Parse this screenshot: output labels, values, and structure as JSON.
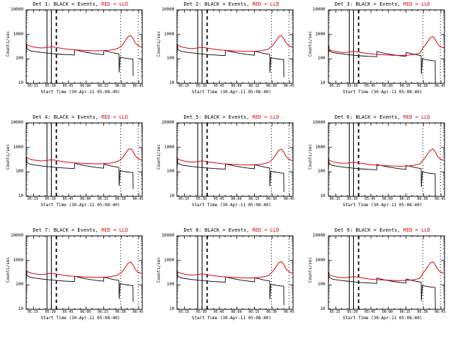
{
  "app": {
    "background": "#ffffff"
  },
  "colors": {
    "events": "#000000",
    "lld": "#dd0000",
    "frame": "#000000"
  },
  "chart_data": {
    "type": "line",
    "ylabel": "Counts/sec",
    "xlabel": "Start Time (30-Apr-11 05:08:40)",
    "ylog": true,
    "ylim": [
      10,
      10000
    ],
    "yticks": [
      10,
      100,
      1000,
      10000
    ],
    "xlim_minutes": [
      8.67,
      108
    ],
    "xticks": [
      {
        "m": 15,
        "label": "05:15"
      },
      {
        "m": 30,
        "label": "05:30"
      },
      {
        "m": 45,
        "label": "05:45"
      },
      {
        "m": 60,
        "label": "06:00"
      },
      {
        "m": 75,
        "label": "06:15"
      },
      {
        "m": 90,
        "label": "06:30"
      },
      {
        "m": 105,
        "label": "06:45"
      }
    ],
    "legend": {
      "black": "Events",
      "red": "LLD"
    },
    "vlines": [
      {
        "m": 26.5,
        "style": "solid"
      },
      {
        "m": 30.2,
        "style": "solid"
      },
      {
        "m": 34.5,
        "style": "dashed"
      },
      {
        "m": 89.5,
        "style": "dotted"
      },
      {
        "m": 104.5,
        "style": "dotted"
      }
    ],
    "red_x": [
      9,
      12,
      15,
      18,
      21,
      24,
      27,
      30,
      33,
      36,
      39,
      42,
      45,
      48,
      51,
      54,
      57,
      60,
      63,
      66,
      69,
      72,
      75,
      78,
      81,
      84,
      87,
      90,
      92,
      94,
      96,
      98,
      100,
      102,
      104,
      106,
      107.5
    ],
    "red_y_base": [
      380,
      330,
      305,
      288,
      278,
      282,
      296,
      312,
      300,
      284,
      268,
      255,
      245,
      238,
      232,
      228,
      224,
      220,
      217,
      214,
      212,
      213,
      216,
      221,
      229,
      243,
      268,
      330,
      430,
      600,
      820,
      900,
      700,
      450,
      360,
      320,
      305
    ],
    "black_x": [
      8.8,
      9,
      9.2,
      12,
      16,
      20,
      24,
      28,
      32,
      36,
      40,
      44,
      48,
      50,
      50.2,
      53,
      56,
      60,
      64,
      68,
      72,
      75,
      75.2,
      78,
      81,
      84,
      87,
      88,
      88.2,
      89,
      92,
      95,
      98,
      100,
      100.2
    ],
    "black_y_base": [
      150,
      420,
      260,
      215,
      200,
      188,
      178,
      170,
      163,
      157,
      152,
      148,
      145,
      143,
      238,
      218,
      202,
      186,
      172,
      161,
      153,
      149,
      216,
      201,
      186,
      172,
      163,
      159,
      28,
      118,
      110,
      104,
      100,
      98,
      20
    ],
    "peak_start_minute": 88,
    "panels": [
      {
        "det": "1",
        "title_black": "Det 1: BLACK = Events,",
        "title_red": " RED = LLD",
        "red_scale": 1.0,
        "red_peak_scale": 1.0,
        "black_scale": 1.0,
        "tail_floor": 20
      },
      {
        "det": "2",
        "title_black": "Det 2: BLACK = Events,",
        "title_red": " RED = LLD",
        "red_scale": 0.95,
        "red_peak_scale": 1.05,
        "black_scale": 0.95,
        "tail_floor": 18
      },
      {
        "det": "3",
        "title_black": "Det 3: BLACK = Events,",
        "title_red": " RED = LLD",
        "red_scale": 0.65,
        "red_peak_scale": 1.4,
        "black_scale": 0.85,
        "tail_floor": 10
      },
      {
        "det": "4",
        "title_black": "Det 4: BLACK = Events,",
        "title_red": " RED = LLD",
        "red_scale": 1.0,
        "red_peak_scale": 1.0,
        "black_scale": 0.95,
        "tail_floor": 20
      },
      {
        "det": "5",
        "title_black": "Det 5: BLACK = Events,",
        "title_red": " RED = LLD",
        "red_scale": 0.9,
        "red_peak_scale": 1.05,
        "black_scale": 0.9,
        "tail_floor": 15
      },
      {
        "det": "6",
        "title_black": "Det 6: BLACK = Events,",
        "title_red": " RED = LLD",
        "red_scale": 0.8,
        "red_peak_scale": 1.2,
        "black_scale": 0.85,
        "tail_floor": 10
      },
      {
        "det": "7",
        "title_black": "Det 7: BLACK = Events,",
        "title_red": " RED = LLD",
        "red_scale": 0.95,
        "red_peak_scale": 1.0,
        "black_scale": 0.95,
        "tail_floor": 20
      },
      {
        "det": "8",
        "title_black": "Det 8: BLACK = Events,",
        "title_red": " RED = LLD",
        "red_scale": 0.9,
        "red_peak_scale": 1.1,
        "black_scale": 0.9,
        "tail_floor": 15
      },
      {
        "det": "9",
        "title_black": "Det 9: BLACK = Events,",
        "title_red": " RED = LLD",
        "red_scale": 0.7,
        "red_peak_scale": 1.4,
        "black_scale": 0.8,
        "tail_floor": 10
      }
    ]
  }
}
